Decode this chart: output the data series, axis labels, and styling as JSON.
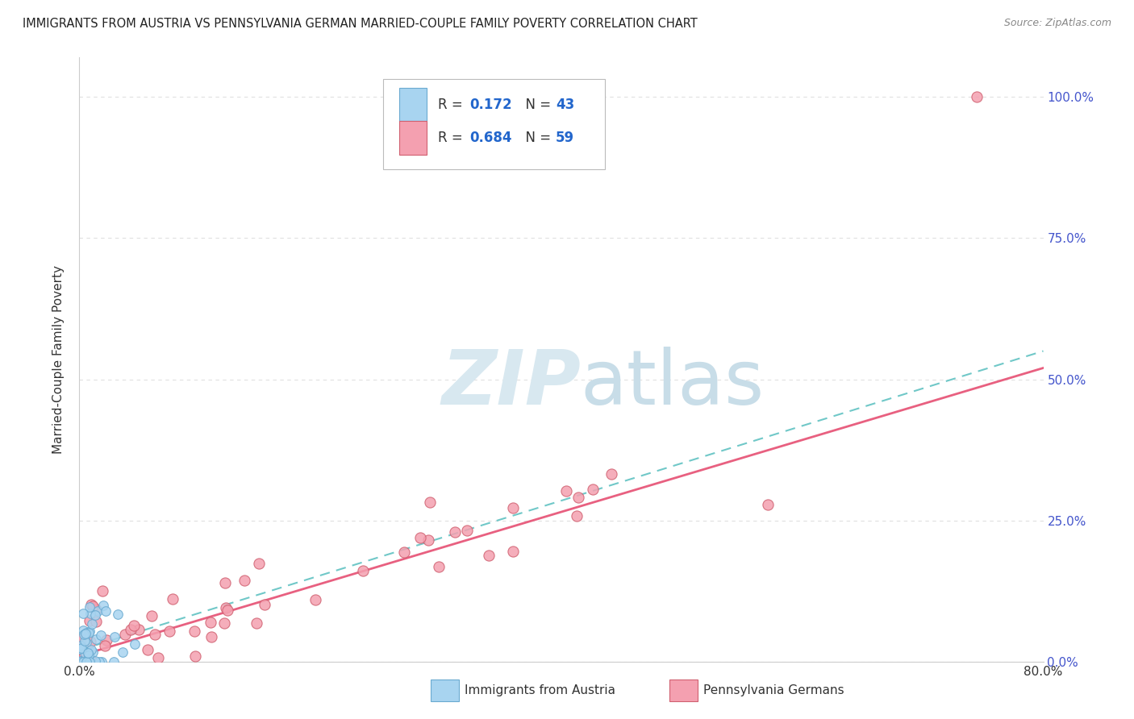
{
  "title": "IMMIGRANTS FROM AUSTRIA VS PENNSYLVANIA GERMAN MARRIED-COUPLE FAMILY POVERTY CORRELATION CHART",
  "source": "Source: ZipAtlas.com",
  "ylabel": "Married-Couple Family Poverty",
  "ytick_vals": [
    0,
    25,
    50,
    75,
    100
  ],
  "ytick_labels": [
    "0.0%",
    "25.0%",
    "50.0%",
    "75.0%",
    "100.0%"
  ],
  "xlim": [
    0,
    80
  ],
  "ylim": [
    0,
    107
  ],
  "blue_R": 0.172,
  "blue_N": 43,
  "pink_R": 0.684,
  "pink_N": 59,
  "blue_color": "#A8D4F0",
  "blue_edge_color": "#6AAAD0",
  "pink_color": "#F4A0B0",
  "pink_edge_color": "#D06070",
  "blue_line_color": "#70C8C8",
  "pink_line_color": "#E86080",
  "right_label_color": "#4455CC",
  "watermark_color": "#D8E8F0",
  "background_color": "#FFFFFF",
  "grid_color": "#DDDDDD",
  "title_color": "#222222",
  "source_color": "#888888",
  "legend_text_color": "#333333",
  "legend_R_color": "#2266CC",
  "legend_N_color": "#2266CC"
}
